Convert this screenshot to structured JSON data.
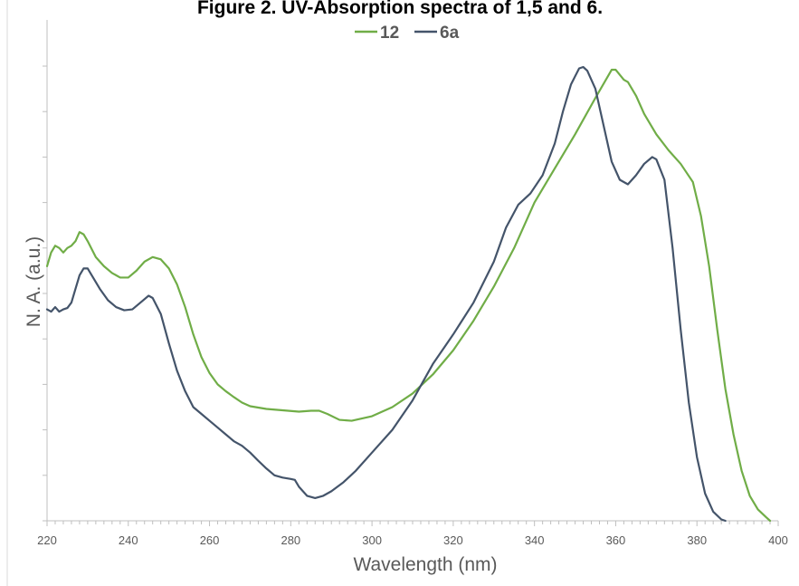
{
  "chart_data": {
    "type": "line",
    "title": "Figure 2. UV-Absorption spectra of 1,5 and 6.",
    "xlabel": "Wavelength (nm)",
    "ylabel": "N. A. (a.u.)",
    "xlim": [
      220,
      400
    ],
    "ylim": [
      0,
      1.0
    ],
    "x_ticks": [
      "220",
      "240",
      "260",
      "280",
      "300",
      "320",
      "340",
      "360",
      "380",
      "400"
    ],
    "y_tick_labels_shown": false,
    "grid": false,
    "legend_position": "top-center",
    "series": [
      {
        "name": "12",
        "color": "#70ad47",
        "points": [
          [
            220,
            0.56
          ],
          [
            221,
            0.59
          ],
          [
            222,
            0.605
          ],
          [
            223,
            0.6
          ],
          [
            224,
            0.59
          ],
          [
            225,
            0.6
          ],
          [
            226,
            0.605
          ],
          [
            227,
            0.615
          ],
          [
            228,
            0.635
          ],
          [
            229,
            0.63
          ],
          [
            230,
            0.615
          ],
          [
            232,
            0.58
          ],
          [
            234,
            0.56
          ],
          [
            236,
            0.545
          ],
          [
            238,
            0.535
          ],
          [
            240,
            0.535
          ],
          [
            242,
            0.55
          ],
          [
            244,
            0.57
          ],
          [
            246,
            0.58
          ],
          [
            248,
            0.575
          ],
          [
            250,
            0.555
          ],
          [
            252,
            0.52
          ],
          [
            254,
            0.47
          ],
          [
            256,
            0.41
          ],
          [
            258,
            0.36
          ],
          [
            260,
            0.325
          ],
          [
            262,
            0.3
          ],
          [
            264,
            0.285
          ],
          [
            266,
            0.272
          ],
          [
            268,
            0.26
          ],
          [
            270,
            0.252
          ],
          [
            274,
            0.246
          ],
          [
            278,
            0.243
          ],
          [
            282,
            0.24
          ],
          [
            285,
            0.242
          ],
          [
            287,
            0.242
          ],
          [
            289,
            0.235
          ],
          [
            292,
            0.222
          ],
          [
            295,
            0.22
          ],
          [
            300,
            0.23
          ],
          [
            305,
            0.25
          ],
          [
            310,
            0.28
          ],
          [
            315,
            0.322
          ],
          [
            320,
            0.375
          ],
          [
            325,
            0.44
          ],
          [
            330,
            0.515
          ],
          [
            335,
            0.6
          ],
          [
            340,
            0.7
          ],
          [
            345,
            0.775
          ],
          [
            350,
            0.85
          ],
          [
            355,
            0.93
          ],
          [
            359,
            0.992
          ],
          [
            360,
            0.992
          ],
          [
            362,
            0.97
          ],
          [
            363,
            0.965
          ],
          [
            365,
            0.935
          ],
          [
            367,
            0.895
          ],
          [
            370,
            0.85
          ],
          [
            373,
            0.815
          ],
          [
            376,
            0.785
          ],
          [
            379,
            0.745
          ],
          [
            381,
            0.67
          ],
          [
            383,
            0.56
          ],
          [
            385,
            0.42
          ],
          [
            387,
            0.29
          ],
          [
            389,
            0.19
          ],
          [
            391,
            0.11
          ],
          [
            393,
            0.055
          ],
          [
            395,
            0.025
          ],
          [
            397,
            0.008
          ],
          [
            398,
            0.0
          ]
        ]
      },
      {
        "name": "6a",
        "color": "#44546a",
        "points": [
          [
            220,
            0.465
          ],
          [
            221,
            0.46
          ],
          [
            222,
            0.47
          ],
          [
            223,
            0.46
          ],
          [
            224,
            0.465
          ],
          [
            225,
            0.468
          ],
          [
            226,
            0.48
          ],
          [
            227,
            0.51
          ],
          [
            228,
            0.54
          ],
          [
            229,
            0.555
          ],
          [
            230,
            0.555
          ],
          [
            231,
            0.54
          ],
          [
            233,
            0.51
          ],
          [
            235,
            0.485
          ],
          [
            237,
            0.47
          ],
          [
            239,
            0.463
          ],
          [
            241,
            0.465
          ],
          [
            243,
            0.48
          ],
          [
            245,
            0.495
          ],
          [
            246,
            0.49
          ],
          [
            248,
            0.455
          ],
          [
            250,
            0.39
          ],
          [
            252,
            0.33
          ],
          [
            254,
            0.285
          ],
          [
            256,
            0.25
          ],
          [
            258,
            0.235
          ],
          [
            260,
            0.22
          ],
          [
            262,
            0.205
          ],
          [
            264,
            0.19
          ],
          [
            266,
            0.175
          ],
          [
            268,
            0.165
          ],
          [
            270,
            0.15
          ],
          [
            272,
            0.132
          ],
          [
            274,
            0.115
          ],
          [
            276,
            0.1
          ],
          [
            278,
            0.095
          ],
          [
            280,
            0.092
          ],
          [
            281,
            0.09
          ],
          [
            282,
            0.075
          ],
          [
            284,
            0.055
          ],
          [
            286,
            0.05
          ],
          [
            288,
            0.055
          ],
          [
            290,
            0.065
          ],
          [
            293,
            0.085
          ],
          [
            296,
            0.11
          ],
          [
            300,
            0.15
          ],
          [
            305,
            0.2
          ],
          [
            310,
            0.265
          ],
          [
            315,
            0.345
          ],
          [
            320,
            0.41
          ],
          [
            325,
            0.48
          ],
          [
            330,
            0.57
          ],
          [
            333,
            0.645
          ],
          [
            336,
            0.695
          ],
          [
            339,
            0.72
          ],
          [
            342,
            0.76
          ],
          [
            345,
            0.83
          ],
          [
            347,
            0.9
          ],
          [
            349,
            0.96
          ],
          [
            351,
            0.995
          ],
          [
            352,
            0.998
          ],
          [
            353,
            0.99
          ],
          [
            355,
            0.95
          ],
          [
            357,
            0.87
          ],
          [
            359,
            0.79
          ],
          [
            361,
            0.75
          ],
          [
            363,
            0.74
          ],
          [
            365,
            0.76
          ],
          [
            367,
            0.785
          ],
          [
            369,
            0.8
          ],
          [
            370,
            0.795
          ],
          [
            372,
            0.75
          ],
          [
            374,
            0.6
          ],
          [
            376,
            0.42
          ],
          [
            378,
            0.26
          ],
          [
            380,
            0.14
          ],
          [
            382,
            0.06
          ],
          [
            384,
            0.02
          ],
          [
            386,
            0.003
          ],
          [
            387,
            0.0
          ]
        ]
      }
    ]
  }
}
